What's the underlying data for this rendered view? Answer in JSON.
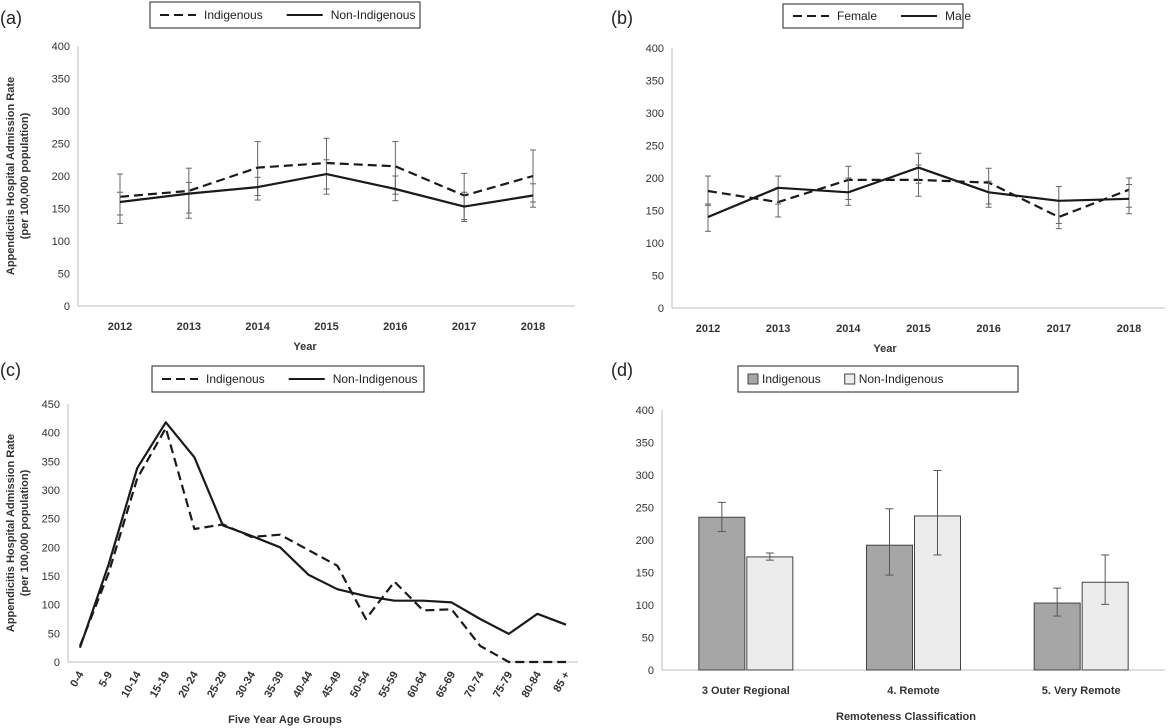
{
  "chart_data": [
    {
      "panel": "(a)",
      "type": "line",
      "xlabel": "Year",
      "ylabel": [
        "Appendicitis Hospital Admission Rate",
        "(per 100,000 population)"
      ],
      "categories": [
        "2012",
        "2013",
        "2014",
        "2015",
        "2016",
        "2017",
        "2018"
      ],
      "ylim": [
        0,
        400
      ],
      "yticks": [
        0,
        50,
        100,
        150,
        200,
        250,
        300,
        350,
        400
      ],
      "series": [
        {
          "name": "Indigenous",
          "dash": true,
          "values": [
            168,
            177,
            213,
            220,
            215,
            170,
            200
          ],
          "err_low": [
            140,
            143,
            170,
            180,
            172,
            133,
            160
          ],
          "err_high": [
            203,
            212,
            253,
            258,
            253,
            204,
            240
          ]
        },
        {
          "name": "Non-Indigenous",
          "dash": false,
          "values": [
            160,
            173,
            183,
            203,
            180,
            153,
            170
          ],
          "err_low": [
            127,
            135,
            163,
            172,
            162,
            130,
            152
          ],
          "err_high": [
            175,
            190,
            198,
            225,
            200,
            175,
            188
          ]
        }
      ]
    },
    {
      "panel": "(b)",
      "type": "line",
      "xlabel": "Year",
      "ylabel": [],
      "categories": [
        "2012",
        "2013",
        "2014",
        "2015",
        "2016",
        "2017",
        "2018"
      ],
      "ylim": [
        0,
        400
      ],
      "yticks": [
        0,
        50,
        100,
        150,
        200,
        250,
        300,
        350,
        400
      ],
      "series": [
        {
          "name": "Female",
          "dash": true,
          "values": [
            180,
            163,
            197,
            197,
            193,
            140,
            182
          ],
          "err_low": [
            158,
            140,
            167,
            172,
            160,
            122,
            155
          ],
          "err_high": [
            203,
            185,
            218,
            220,
            215,
            165,
            200
          ]
        },
        {
          "name": "Male",
          "dash": false,
          "values": [
            140,
            185,
            178,
            216,
            178,
            165,
            168
          ],
          "err_low": [
            118,
            160,
            158,
            192,
            155,
            130,
            145
          ],
          "err_high": [
            160,
            203,
            200,
            238,
            195,
            187,
            190
          ]
        }
      ]
    },
    {
      "panel": "(c)",
      "type": "line",
      "xlabel": "Five Year Age Groups",
      "ylabel": [
        "Appendicitis Hospital Admission Rate",
        "(per 100,000 population)"
      ],
      "categories": [
        "0-4",
        "5-9",
        "10-14",
        "15-19",
        "20-24",
        "25-29",
        "30-34",
        "35-39",
        "40-44",
        "45-49",
        "50-54",
        "55-59",
        "60-64",
        "65-69",
        "70-74",
        "75-79",
        "80-84",
        "85 +"
      ],
      "ylim": [
        0,
        450
      ],
      "yticks": [
        0,
        50,
        100,
        150,
        200,
        250,
        300,
        350,
        400,
        450
      ],
      "series": [
        {
          "name": "Indigenous",
          "dash": true,
          "values": [
            28,
            155,
            320,
            408,
            232,
            240,
            218,
            222,
            195,
            168,
            75,
            140,
            90,
            92,
            28,
            0,
            0,
            0
          ]
        },
        {
          "name": "Non-Indigenous",
          "dash": false,
          "values": [
            25,
            170,
            338,
            418,
            357,
            238,
            220,
            200,
            152,
            127,
            115,
            107,
            107,
            104,
            75,
            49,
            84,
            65
          ]
        }
      ]
    },
    {
      "panel": "(d)",
      "type": "bar",
      "xlabel": "Remoteness Classification",
      "ylabel": [],
      "categories": [
        "3 Outer Regional",
        "4. Remote",
        "5. Very Remote"
      ],
      "ylim": [
        0,
        400
      ],
      "yticks": [
        0,
        50,
        100,
        150,
        200,
        250,
        300,
        350,
        400
      ],
      "series": [
        {
          "name": "Indigenous",
          "color": "#a6a6a6",
          "values": [
            235,
            192,
            103
          ],
          "err_low": [
            213,
            146,
            83
          ],
          "err_high": [
            258,
            248,
            126
          ]
        },
        {
          "name": "Non-Indigenous",
          "color": "#ececec",
          "values": [
            174,
            237,
            135
          ],
          "err_low": [
            169,
            177,
            101
          ],
          "err_high": [
            180,
            307,
            177
          ]
        }
      ]
    }
  ],
  "colors": {
    "line": "#1a1a1a",
    "axis": "#bfbfbf",
    "bar_edge": "#444444"
  }
}
